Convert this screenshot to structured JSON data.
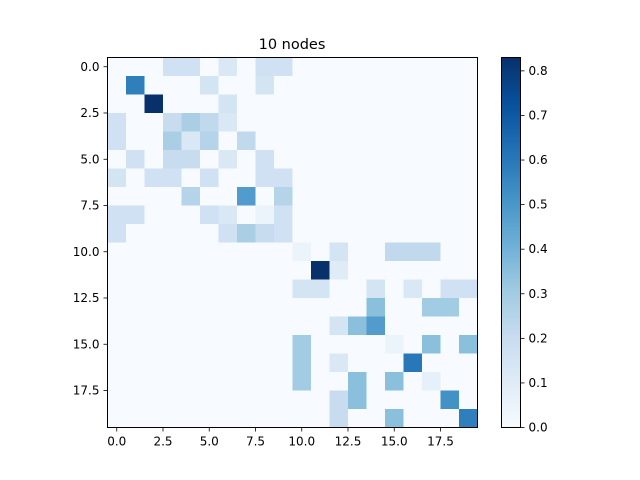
{
  "chart_data": {
    "type": "heatmap",
    "title": "10 nodes",
    "colormap": "Blues",
    "colorbar_range": [
      0.0,
      0.83
    ],
    "x_ticks": [
      "0.0",
      "2.5",
      "5.0",
      "7.5",
      "10.0",
      "12.5",
      "15.0",
      "17.5"
    ],
    "y_ticks": [
      "0.0",
      "2.5",
      "5.0",
      "7.5",
      "10.0",
      "12.5",
      "15.0",
      "17.5"
    ],
    "colorbar_ticks": [
      "0.0",
      "0.1",
      "0.2",
      "0.3",
      "0.4",
      "0.5",
      "0.6",
      "0.7",
      "0.8"
    ],
    "matrix": [
      [
        0,
        0,
        0,
        0.17,
        0.17,
        0,
        0.12,
        0,
        0.17,
        0.17,
        0,
        0,
        0,
        0,
        0,
        0,
        0,
        0,
        0,
        0
      ],
      [
        0,
        0.58,
        0,
        0,
        0,
        0.15,
        0,
        0,
        0.15,
        0,
        0,
        0,
        0,
        0,
        0,
        0,
        0,
        0,
        0,
        0
      ],
      [
        0,
        0,
        0.83,
        0,
        0,
        0,
        0.15,
        0,
        0,
        0,
        0,
        0,
        0,
        0,
        0,
        0,
        0,
        0,
        0,
        0
      ],
      [
        0.17,
        0,
        0,
        0.2,
        0.28,
        0.22,
        0.12,
        0,
        0,
        0,
        0,
        0,
        0,
        0,
        0,
        0,
        0,
        0,
        0,
        0
      ],
      [
        0.17,
        0,
        0,
        0.28,
        0.12,
        0.25,
        0,
        0.22,
        0,
        0,
        0,
        0,
        0,
        0,
        0,
        0,
        0,
        0,
        0,
        0
      ],
      [
        0,
        0.17,
        0,
        0.2,
        0.2,
        0,
        0.12,
        0,
        0.17,
        0,
        0,
        0,
        0,
        0,
        0,
        0,
        0,
        0,
        0,
        0
      ],
      [
        0.15,
        0,
        0.17,
        0.17,
        0,
        0.17,
        0,
        0,
        0.17,
        0.17,
        0,
        0,
        0,
        0,
        0,
        0,
        0,
        0,
        0,
        0
      ],
      [
        0,
        0,
        0,
        0,
        0.25,
        0,
        0,
        0.48,
        0,
        0.25,
        0,
        0,
        0,
        0,
        0,
        0,
        0,
        0,
        0,
        0
      ],
      [
        0.17,
        0.17,
        0,
        0,
        0,
        0.17,
        0.12,
        0,
        0.05,
        0.17,
        0,
        0,
        0,
        0,
        0,
        0,
        0,
        0,
        0,
        0
      ],
      [
        0.17,
        0,
        0,
        0,
        0,
        0,
        0.17,
        0.28,
        0.2,
        0.17,
        0,
        0,
        0,
        0,
        0,
        0,
        0,
        0,
        0,
        0
      ],
      [
        0,
        0,
        0,
        0,
        0,
        0,
        0,
        0,
        0,
        0,
        0.05,
        0,
        0.15,
        0,
        0,
        0.22,
        0.22,
        0.22,
        0,
        0
      ],
      [
        0,
        0,
        0,
        0,
        0,
        0,
        0,
        0,
        0,
        0,
        0,
        0.83,
        0.1,
        0,
        0,
        0,
        0,
        0,
        0,
        0
      ],
      [
        0,
        0,
        0,
        0,
        0,
        0,
        0,
        0,
        0,
        0,
        0.15,
        0.15,
        0,
        0,
        0.15,
        0,
        0.12,
        0,
        0.17,
        0.17
      ],
      [
        0,
        0,
        0,
        0,
        0,
        0,
        0,
        0,
        0,
        0,
        0,
        0,
        0,
        0,
        0.35,
        0,
        0,
        0.3,
        0.3,
        0
      ],
      [
        0,
        0,
        0,
        0,
        0,
        0,
        0,
        0,
        0,
        0,
        0,
        0,
        0.15,
        0.35,
        0.48,
        0,
        0,
        0,
        0,
        0
      ],
      [
        0,
        0,
        0,
        0,
        0,
        0,
        0,
        0,
        0,
        0,
        0.3,
        0,
        0,
        0,
        0,
        0.05,
        0,
        0.35,
        0,
        0.35
      ],
      [
        0,
        0,
        0,
        0,
        0,
        0,
        0,
        0,
        0,
        0,
        0.3,
        0,
        0.12,
        0,
        0,
        0,
        0.6,
        0,
        0,
        0
      ],
      [
        0,
        0,
        0,
        0,
        0,
        0,
        0,
        0,
        0,
        0,
        0.3,
        0,
        0,
        0.35,
        0,
        0.35,
        0,
        0.07,
        0,
        0
      ],
      [
        0,
        0,
        0,
        0,
        0,
        0,
        0,
        0,
        0,
        0,
        0,
        0,
        0.2,
        0.35,
        0,
        0,
        0,
        0,
        0.52,
        0
      ],
      [
        0,
        0,
        0,
        0,
        0,
        0,
        0,
        0,
        0,
        0,
        0,
        0,
        0.2,
        0,
        0,
        0.35,
        0,
        0,
        0,
        0.58
      ]
    ]
  }
}
